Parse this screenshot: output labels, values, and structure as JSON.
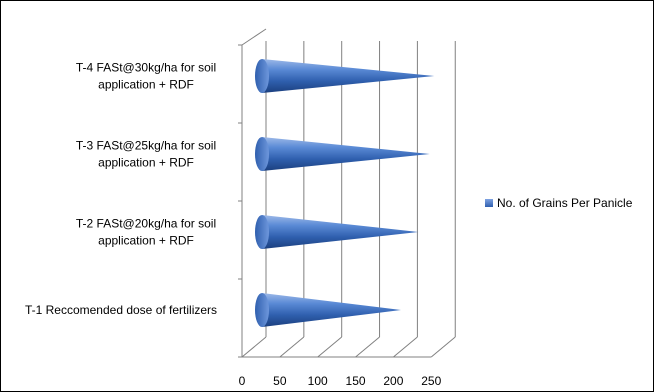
{
  "chart_data": {
    "type": "bar",
    "style": "3d-cone",
    "orientation": "horizontal",
    "categories": [
      "T-1 Reccomended dose of fertilizers",
      "T-2 FASt@20kg/ha for soil application + RDF",
      "T-3 FASt@25kg/ha for soil application + RDF",
      "T-4 FASt@30kg/ha for soil application + RDF"
    ],
    "series": [
      {
        "name": "No. of Grains Per Panicle",
        "values": [
          210,
          233,
          248,
          254
        ],
        "color": "#4472C4"
      }
    ],
    "xlim": [
      0,
      250
    ],
    "xticks": [
      0,
      50,
      100,
      150,
      200,
      250
    ],
    "grid": true,
    "legend": "right"
  }
}
